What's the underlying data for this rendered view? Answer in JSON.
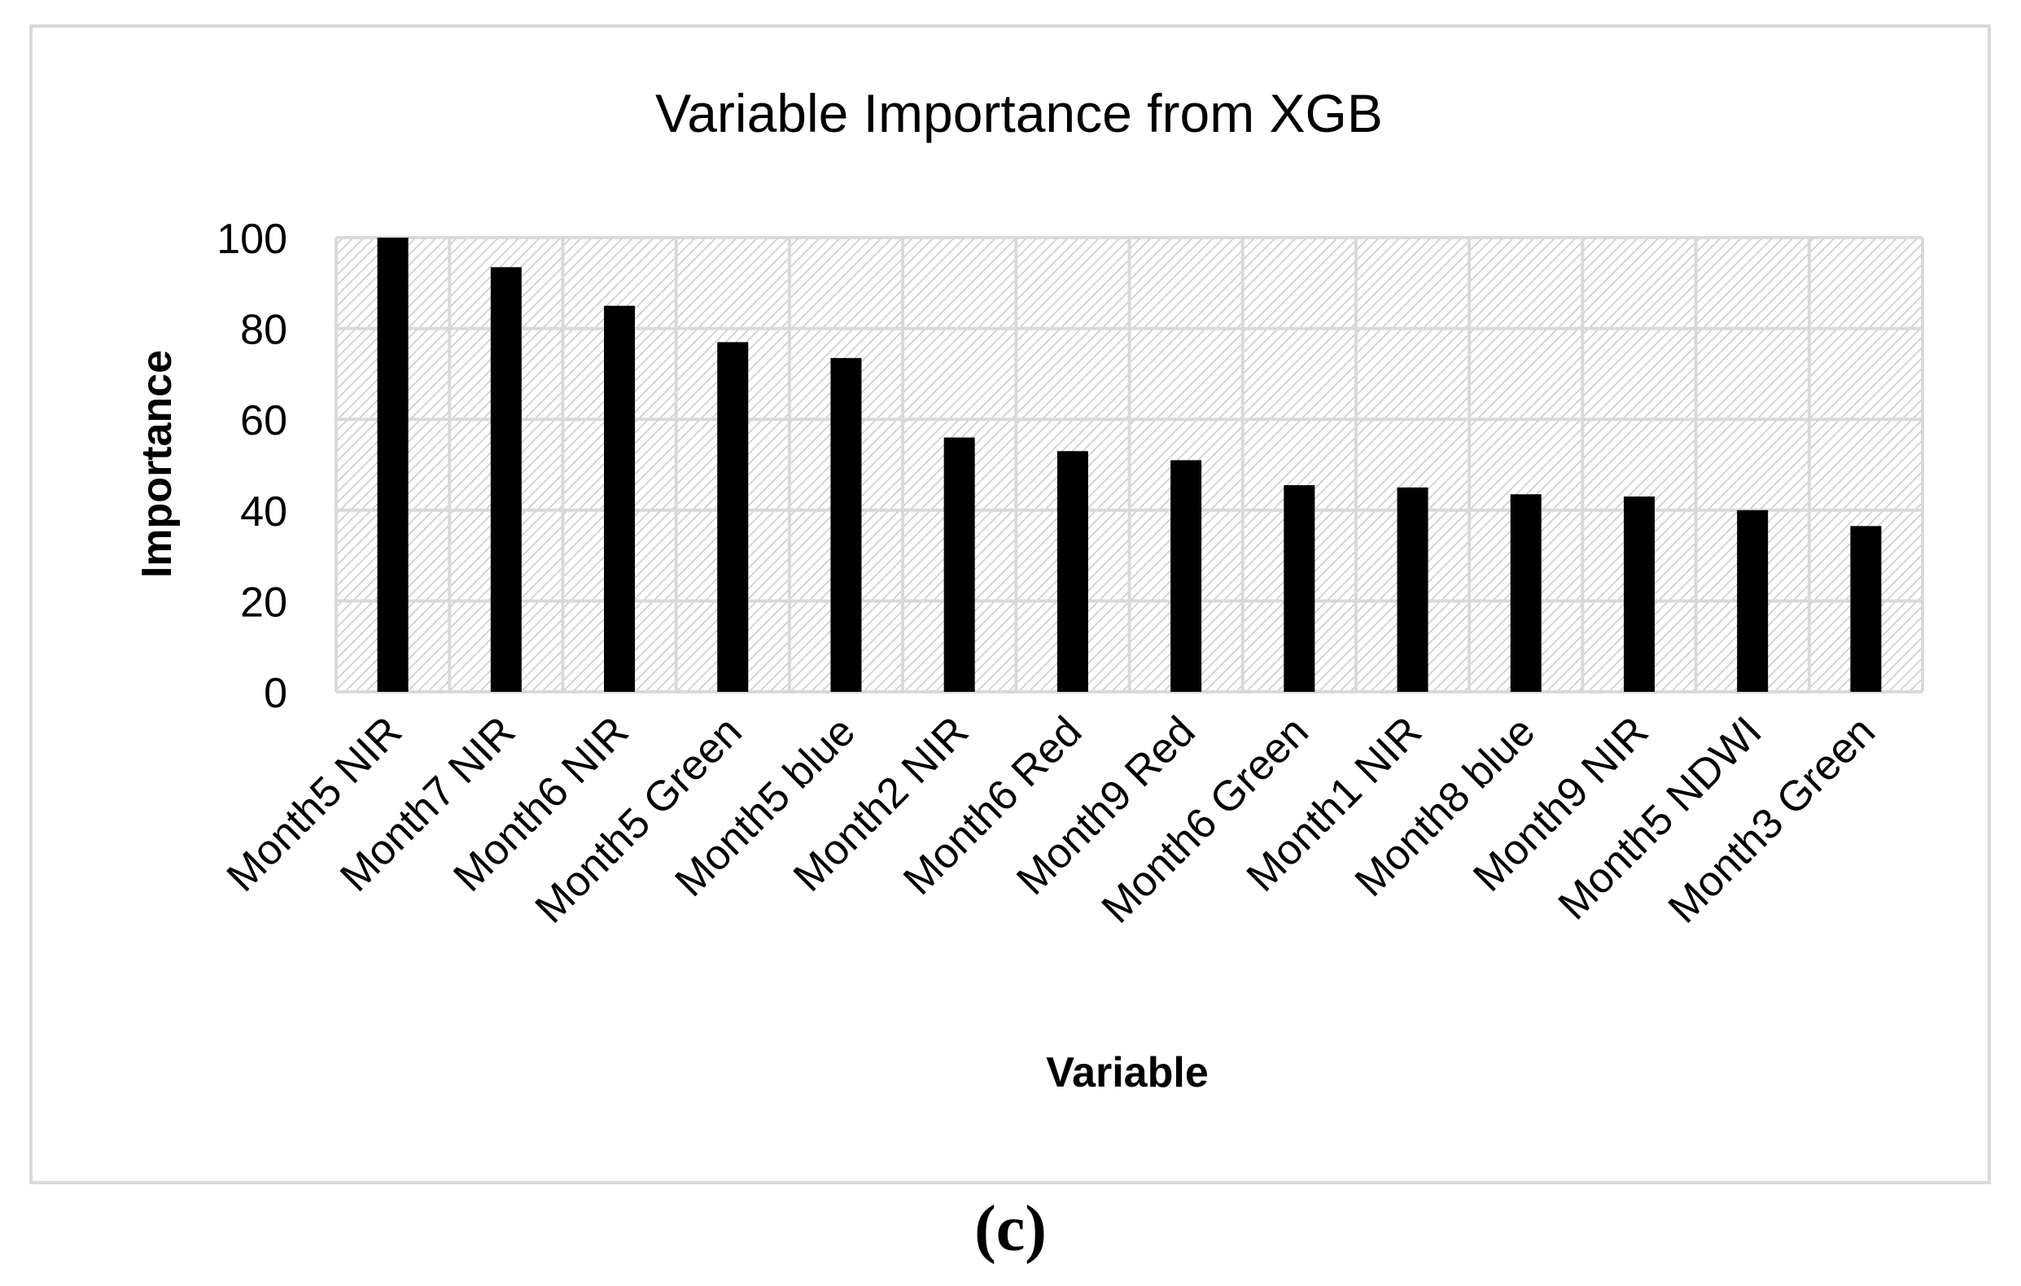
{
  "chart_data": {
    "type": "bar",
    "title": "Variable Importance from XGB",
    "xlabel": "Variable",
    "ylabel": "Importance",
    "categories": [
      "Month5 NIR",
      "Month7 NIR",
      "Month6 NIR",
      "Month5 Green",
      "Month5 blue",
      "Month2 NIR",
      "Month6 Red",
      "Month9 Red",
      "Month6 Green",
      "Month1 NIR",
      "Month8 blue",
      "Month9 NIR",
      "Month5 NDWI",
      "Month3 Green"
    ],
    "values": [
      100,
      93.5,
      85,
      77,
      73.5,
      56,
      53,
      51,
      45.5,
      45,
      43.5,
      43,
      40,
      36.5
    ],
    "ylim": [
      0,
      100
    ],
    "yticks": [
      0,
      20,
      40,
      60,
      80,
      100
    ],
    "grid": true,
    "bar_color": "#000000",
    "grid_color": "#d9d9d9",
    "hatch_color": "#bfbfbf"
  },
  "panel_label": "(c)"
}
